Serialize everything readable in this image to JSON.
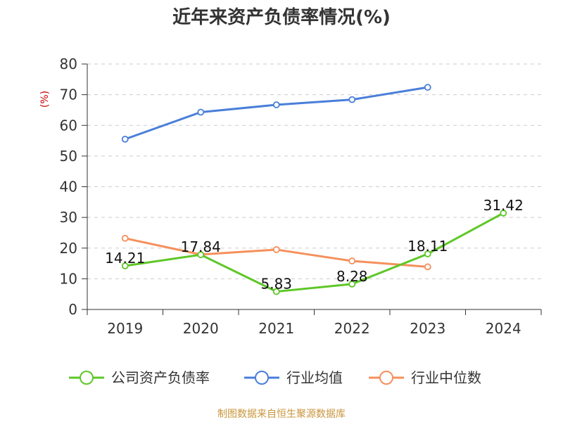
{
  "chart_data": {
    "type": "line",
    "title": "近年来资产负债率情况(%)",
    "ylabel": "(%)",
    "ylim": [
      0,
      80
    ],
    "yticks": [
      0,
      10,
      20,
      30,
      40,
      50,
      60,
      70,
      80
    ],
    "categories": [
      "2019",
      "2020",
      "2021",
      "2022",
      "2023",
      "2024"
    ],
    "grid": true,
    "legend_position": "bottom",
    "series": [
      {
        "name": "公司资产负债率",
        "color": "#5dc726",
        "values": [
          14.21,
          17.84,
          5.83,
          8.28,
          18.11,
          31.42
        ],
        "labels": [
          "14.21",
          "17.84",
          "5.83",
          "8.28",
          "18.11",
          "31.42"
        ]
      },
      {
        "name": "行业均值",
        "color": "#4a7fd9",
        "values": [
          55.5,
          64.3,
          66.7,
          68.4,
          72.4,
          null
        ],
        "labels": []
      },
      {
        "name": "行业中位数",
        "color": "#f5905b",
        "values": [
          23.2,
          17.9,
          19.5,
          15.8,
          13.9,
          null
        ],
        "labels": []
      }
    ]
  },
  "source_text": "制图数据来自恒生聚源数据库",
  "colors": {
    "axis": "#333333",
    "grid": "#cccccc",
    "ylabel": "#cc0000",
    "source": "#c8963c"
  }
}
